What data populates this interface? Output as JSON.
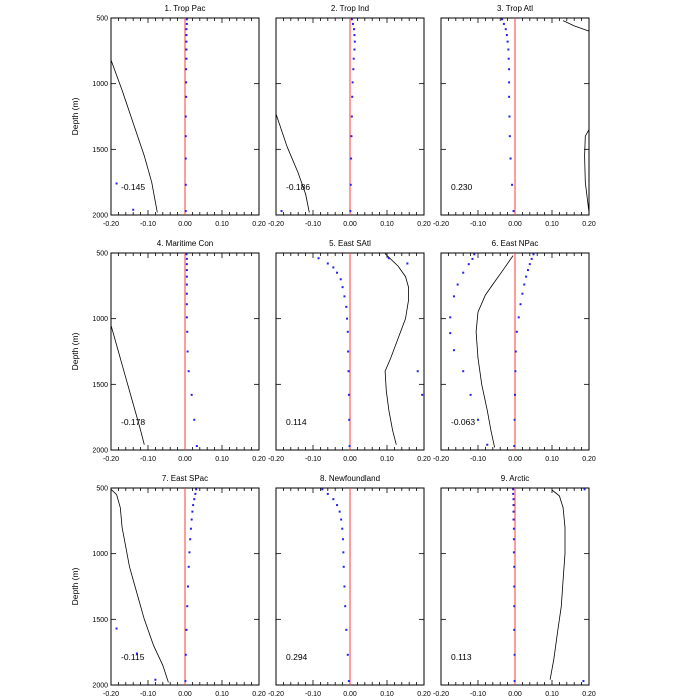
{
  "chart_data": {
    "type": "line",
    "xlim": [
      -0.2,
      0.2
    ],
    "ylim": [
      2000,
      500
    ],
    "xticks": [
      "-0.20",
      "-0.10",
      "0.00",
      "0.10",
      "0.20"
    ],
    "yticks": [
      "500",
      "1000",
      "1500",
      "2000"
    ],
    "ylabel": "Depth (m)",
    "colors": {
      "zero_line": "#ff3b3b",
      "dots": "#2222ee",
      "curve": "#000000"
    },
    "panels": [
      {
        "title": "1. Trop Pac",
        "correlation": "-0.145",
        "curve": [
          [
            -0.2,
            820
          ],
          [
            -0.17,
            1050
          ],
          [
            -0.14,
            1300
          ],
          [
            -0.11,
            1550
          ],
          [
            -0.09,
            1750
          ],
          [
            -0.075,
            1980
          ]
        ],
        "dots": [
          [
            0.005,
            510
          ],
          [
            0.005,
            545
          ],
          [
            0.004,
            585
          ],
          [
            0.004,
            630
          ],
          [
            0.004,
            680
          ],
          [
            0.004,
            740
          ],
          [
            0.004,
            810
          ],
          [
            0.003,
            890
          ],
          [
            0.003,
            990
          ],
          [
            0.003,
            1100
          ],
          [
            0.002,
            1250
          ],
          [
            0.002,
            1400
          ],
          [
            0.002,
            1570
          ],
          [
            0.002,
            1770
          ],
          [
            0.002,
            1970
          ],
          [
            -0.185,
            1760
          ],
          [
            -0.14,
            1960
          ]
        ]
      },
      {
        "title": "2. Trop Ind",
        "correlation": "-0.186",
        "curve": [
          [
            -0.2,
            1230
          ],
          [
            -0.17,
            1480
          ],
          [
            -0.14,
            1680
          ],
          [
            -0.12,
            1840
          ],
          [
            -0.11,
            1980
          ]
        ],
        "dots": [
          [
            0.005,
            510
          ],
          [
            0.008,
            545
          ],
          [
            0.011,
            585
          ],
          [
            0.012,
            630
          ],
          [
            0.013,
            680
          ],
          [
            0.012,
            740
          ],
          [
            0.01,
            810
          ],
          [
            0.009,
            890
          ],
          [
            0.007,
            990
          ],
          [
            0.006,
            1100
          ],
          [
            0.005,
            1250
          ],
          [
            0.004,
            1400
          ],
          [
            0.003,
            1570
          ],
          [
            0.002,
            1770
          ],
          [
            0.001,
            1970
          ],
          [
            -0.185,
            1970
          ]
        ]
      },
      {
        "title": "3. Trop Atl",
        "correlation": "0.230",
        "curve_segments": [
          [
            [
              0.13,
              520
            ],
            [
              0.16,
              560
            ],
            [
              0.2,
              600
            ]
          ],
          [
            [
              0.2,
              1350
            ],
            [
              0.19,
              1400
            ],
            [
              0.188,
              1550
            ],
            [
              0.19,
              1750
            ],
            [
              0.2,
              1980
            ]
          ]
        ],
        "dots": [
          [
            -0.035,
            510
          ],
          [
            -0.03,
            545
          ],
          [
            -0.025,
            585
          ],
          [
            -0.022,
            630
          ],
          [
            -0.02,
            680
          ],
          [
            -0.018,
            740
          ],
          [
            -0.017,
            810
          ],
          [
            -0.016,
            890
          ],
          [
            -0.016,
            990
          ],
          [
            -0.016,
            1100
          ],
          [
            -0.015,
            1250
          ],
          [
            -0.014,
            1400
          ],
          [
            -0.012,
            1570
          ],
          [
            -0.008,
            1770
          ],
          [
            -0.004,
            1970
          ]
        ]
      },
      {
        "title": "4. Maritime Con",
        "correlation": "-0.178",
        "curve": [
          [
            -0.2,
            1050
          ],
          [
            -0.18,
            1250
          ],
          [
            -0.16,
            1450
          ],
          [
            -0.14,
            1650
          ],
          [
            -0.12,
            1850
          ],
          [
            -0.11,
            1960
          ]
        ],
        "dots": [
          [
            0.004,
            510
          ],
          [
            0.005,
            545
          ],
          [
            0.005,
            585
          ],
          [
            0.005,
            630
          ],
          [
            0.005,
            680
          ],
          [
            0.005,
            740
          ],
          [
            0.005,
            810
          ],
          [
            0.005,
            890
          ],
          [
            0.005,
            990
          ],
          [
            0.006,
            1100
          ],
          [
            0.007,
            1250
          ],
          [
            0.01,
            1400
          ],
          [
            0.018,
            1580
          ],
          [
            0.025,
            1770
          ],
          [
            0.032,
            1970
          ]
        ]
      },
      {
        "title": "5. East SAtl",
        "correlation": "0.114",
        "curve": [
          [
            0.095,
            505
          ],
          [
            0.13,
            600
          ],
          [
            0.15,
            680
          ],
          [
            0.158,
            760
          ],
          [
            0.158,
            860
          ],
          [
            0.15,
            1000
          ],
          [
            0.13,
            1150
          ],
          [
            0.11,
            1300
          ],
          [
            0.095,
            1400
          ],
          [
            0.098,
            1550
          ],
          [
            0.105,
            1700
          ],
          [
            0.115,
            1850
          ],
          [
            0.125,
            1960
          ]
        ],
        "dots": [
          [
            -0.085,
            540
          ],
          [
            -0.06,
            580
          ],
          [
            -0.045,
            610
          ],
          [
            -0.035,
            650
          ],
          [
            -0.025,
            700
          ],
          [
            -0.02,
            760
          ],
          [
            -0.015,
            830
          ],
          [
            -0.01,
            910
          ],
          [
            -0.008,
            1000
          ],
          [
            -0.006,
            1100
          ],
          [
            -0.005,
            1250
          ],
          [
            -0.004,
            1400
          ],
          [
            -0.003,
            1580
          ],
          [
            -0.002,
            1770
          ],
          [
            -0.001,
            1970
          ],
          [
            0.105,
            540
          ],
          [
            0.155,
            580
          ],
          [
            0.183,
            1400
          ],
          [
            0.195,
            1580
          ]
        ]
      },
      {
        "title": "6. East NPac",
        "correlation": "-0.063",
        "curve": [
          [
            -0.005,
            520
          ],
          [
            -0.03,
            620
          ],
          [
            -0.055,
            720
          ],
          [
            -0.08,
            820
          ],
          [
            -0.1,
            950
          ],
          [
            -0.105,
            1100
          ],
          [
            -0.1,
            1300
          ],
          [
            -0.09,
            1500
          ],
          [
            -0.075,
            1700
          ],
          [
            -0.065,
            1850
          ],
          [
            -0.055,
            1980
          ]
        ],
        "dots": [
          [
            0.05,
            510
          ],
          [
            0.045,
            545
          ],
          [
            0.04,
            585
          ],
          [
            0.035,
            630
          ],
          [
            0.03,
            680
          ],
          [
            0.025,
            740
          ],
          [
            0.02,
            810
          ],
          [
            0.015,
            890
          ],
          [
            0.01,
            990
          ],
          [
            0.005,
            1100
          ],
          [
            0.002,
            1250
          ],
          [
            0.001,
            1400
          ],
          [
            0.0,
            1580
          ],
          [
            -0.001,
            1770
          ],
          [
            -0.002,
            1970
          ],
          [
            -0.11,
            510
          ],
          [
            -0.115,
            545
          ],
          [
            -0.125,
            585
          ],
          [
            -0.14,
            650
          ],
          [
            -0.155,
            740
          ],
          [
            -0.165,
            830
          ],
          [
            -0.175,
            990
          ],
          [
            -0.175,
            1110
          ],
          [
            -0.165,
            1240
          ],
          [
            -0.14,
            1400
          ],
          [
            -0.12,
            1580
          ],
          [
            -0.1,
            1770
          ],
          [
            -0.075,
            1960
          ]
        ]
      },
      {
        "title": "7. East SPac",
        "correlation": "-0.115",
        "curve": [
          [
            -0.2,
            510
          ],
          [
            -0.185,
            550
          ],
          [
            -0.175,
            650
          ],
          [
            -0.17,
            800
          ],
          [
            -0.16,
            950
          ],
          [
            -0.15,
            1100
          ],
          [
            -0.13,
            1300
          ],
          [
            -0.11,
            1500
          ],
          [
            -0.085,
            1700
          ],
          [
            -0.06,
            1850
          ],
          [
            -0.045,
            1980
          ]
        ],
        "dots": [
          [
            0.03,
            510
          ],
          [
            0.028,
            545
          ],
          [
            0.025,
            585
          ],
          [
            0.022,
            630
          ],
          [
            0.02,
            680
          ],
          [
            0.018,
            740
          ],
          [
            0.016,
            810
          ],
          [
            0.014,
            890
          ],
          [
            0.012,
            990
          ],
          [
            0.01,
            1100
          ],
          [
            0.008,
            1250
          ],
          [
            0.006,
            1400
          ],
          [
            0.004,
            1580
          ],
          [
            0.002,
            1770
          ],
          [
            0.001,
            1970
          ],
          [
            -0.185,
            1570
          ],
          [
            -0.13,
            1760
          ],
          [
            -0.08,
            1960
          ]
        ]
      },
      {
        "title": "8. Newfoundland",
        "correlation": "0.294",
        "curve": [],
        "dots": [
          [
            -0.075,
            510
          ],
          [
            -0.06,
            545
          ],
          [
            -0.045,
            585
          ],
          [
            -0.035,
            630
          ],
          [
            -0.028,
            680
          ],
          [
            -0.024,
            740
          ],
          [
            -0.021,
            810
          ],
          [
            -0.019,
            890
          ],
          [
            -0.018,
            990
          ],
          [
            -0.017,
            1100
          ],
          [
            -0.015,
            1250
          ],
          [
            -0.013,
            1400
          ],
          [
            -0.01,
            1580
          ],
          [
            -0.006,
            1770
          ],
          [
            -0.003,
            1970
          ]
        ]
      },
      {
        "title": "9. Arctic",
        "correlation": "0.113",
        "curve": [
          [
            0.1,
            515
          ],
          [
            0.12,
            560
          ],
          [
            0.13,
            650
          ],
          [
            0.135,
            800
          ],
          [
            0.135,
            1000
          ],
          [
            0.13,
            1200
          ],
          [
            0.125,
            1400
          ],
          [
            0.115,
            1600
          ],
          [
            0.105,
            1800
          ],
          [
            0.095,
            1960
          ]
        ],
        "dots": [
          [
            -0.005,
            510
          ],
          [
            -0.005,
            545
          ],
          [
            -0.004,
            585
          ],
          [
            -0.004,
            630
          ],
          [
            -0.004,
            680
          ],
          [
            -0.004,
            740
          ],
          [
            -0.003,
            810
          ],
          [
            -0.003,
            890
          ],
          [
            -0.003,
            990
          ],
          [
            -0.002,
            1100
          ],
          [
            -0.002,
            1250
          ],
          [
            -0.002,
            1400
          ],
          [
            -0.002,
            1580
          ],
          [
            -0.001,
            1770
          ],
          [
            -0.001,
            1970
          ],
          [
            0.188,
            510
          ],
          [
            0.185,
            1970
          ]
        ]
      }
    ]
  }
}
